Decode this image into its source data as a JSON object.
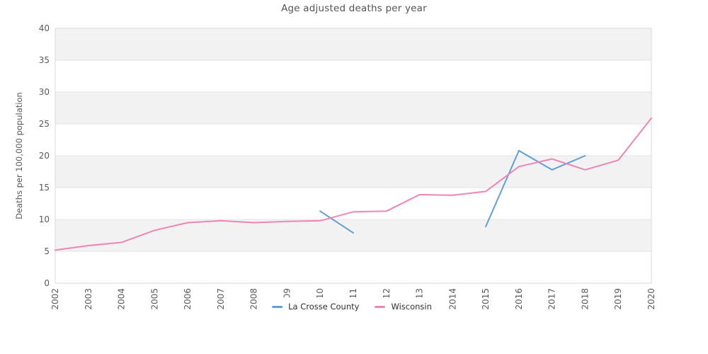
{
  "chart_data": {
    "type": "line",
    "title": "Age adjusted deaths per year",
    "ylabel": "Deaths per 100,000 population",
    "xlabel": "",
    "x": [
      "2002",
      "2003",
      "2004",
      "2005",
      "2006",
      "2007",
      "2008",
      "2009",
      "2010",
      "2011",
      "2012",
      "2013",
      "2014",
      "2015",
      "2016",
      "2017",
      "2018",
      "2019",
      "2020"
    ],
    "series": [
      {
        "name": "La Crosse County",
        "color": "#5f9fd6",
        "values": [
          null,
          null,
          null,
          null,
          null,
          null,
          null,
          null,
          11.3,
          7.9,
          null,
          null,
          null,
          8.9,
          20.8,
          17.8,
          20.0,
          null,
          null
        ]
      },
      {
        "name": "Wisconsin",
        "color": "#ee85b5",
        "values": [
          5.2,
          5.9,
          6.4,
          8.3,
          9.5,
          9.8,
          9.5,
          9.7,
          9.8,
          11.2,
          11.3,
          13.9,
          13.8,
          14.4,
          18.3,
          19.5,
          17.8,
          19.3,
          25.9
        ]
      }
    ],
    "ylim": [
      0,
      40
    ],
    "ytick_step": 5,
    "grid": true,
    "legend_position": "bottom-center",
    "band_color": "#f2f2f2",
    "grid_color": "#e4e4e4",
    "axis_color": "#d9d9d9",
    "text_color": "#595959"
  }
}
